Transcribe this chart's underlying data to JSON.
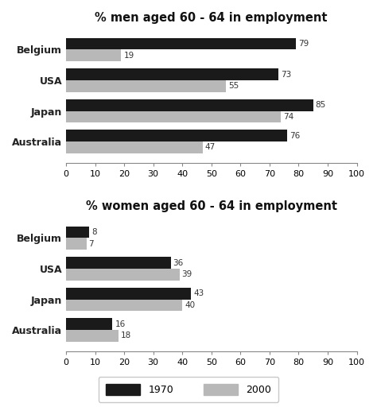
{
  "men_title": "% men aged 60 - 64 in employment",
  "women_title": "% women aged 60 - 64 in employment",
  "countries": [
    "Australia",
    "Japan",
    "USA",
    "Belgium"
  ],
  "men_1970": [
    76,
    85,
    73,
    79
  ],
  "men_2000": [
    47,
    74,
    55,
    19
  ],
  "women_1970": [
    16,
    43,
    36,
    8
  ],
  "women_2000": [
    18,
    40,
    39,
    7
  ],
  "color_1970": "#1a1a1a",
  "color_2000": "#b8b8b8",
  "xlim": [
    0,
    100
  ],
  "xticks": [
    0,
    10,
    20,
    30,
    40,
    50,
    60,
    70,
    80,
    90,
    100
  ],
  "bar_height": 0.38,
  "label_1970": "1970",
  "label_2000": "2000",
  "bg_color": "#ffffff",
  "title_fontsize": 10.5,
  "label_fontsize": 9,
  "tick_fontsize": 8,
  "value_fontsize": 7.5
}
